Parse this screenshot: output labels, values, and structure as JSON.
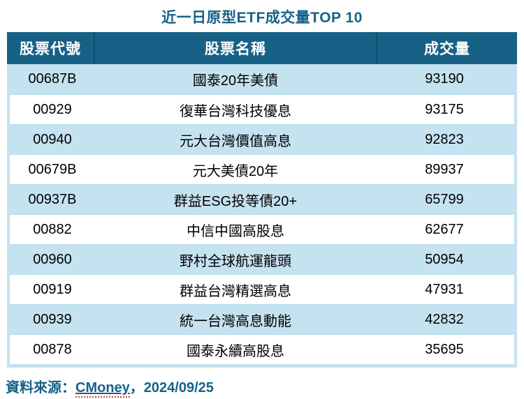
{
  "title": "近一日原型ETF成交量TOP 10",
  "table": {
    "columns": [
      "股票代號",
      "股票名稱",
      "成交量"
    ],
    "rows": [
      {
        "code": "00687B",
        "name": "國泰20年美債",
        "volume": "93190"
      },
      {
        "code": "00929",
        "name": "復華台灣科技優息",
        "volume": "93175"
      },
      {
        "code": "00940",
        "name": "元大台灣價值高息",
        "volume": "92823"
      },
      {
        "code": "00679B",
        "name": "元大美債20年",
        "volume": "89937"
      },
      {
        "code": "00937B",
        "name": "群益ESG投等債20+",
        "volume": "65799"
      },
      {
        "code": "00882",
        "name": "中信中國高股息",
        "volume": "62677"
      },
      {
        "code": "00960",
        "name": "野村全球航運龍頭",
        "volume": "50954"
      },
      {
        "code": "00919",
        "name": "群益台灣精選高息",
        "volume": "47931"
      },
      {
        "code": "00939",
        "name": "統一台灣高息動能",
        "volume": "42832"
      },
      {
        "code": "00878",
        "name": "國泰永續高股息",
        "volume": "35695"
      }
    ]
  },
  "footer": {
    "source_label": "資料來源：",
    "source_link": "CMoney",
    "date_suffix": "，2024/09/25"
  },
  "colors": {
    "header_bg": "#186186",
    "header_divider": "#0f506e",
    "row_alt_bg": "#c5e2f1",
    "row_separator": "#b3d9ec",
    "title_color": "#16618a",
    "footer_color": "#16618a",
    "squiggle_red": "#e0362c",
    "body_text": "#000000"
  }
}
